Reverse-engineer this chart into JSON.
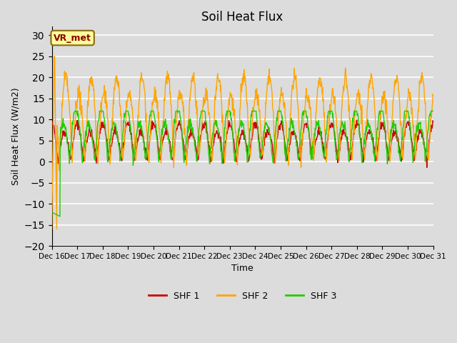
{
  "title": "Soil Heat Flux",
  "xlabel": "Time",
  "ylabel": "Soil Heat Flux (W/m2)",
  "ylim": [
    -20,
    32
  ],
  "yticks": [
    -20,
    -15,
    -10,
    -5,
    0,
    5,
    10,
    15,
    20,
    25,
    30
  ],
  "background_color": "#dcdcdc",
  "grid_color": "#ffffff",
  "shf1_color": "#cc0000",
  "shf2_color": "#ffa500",
  "shf3_color": "#22cc00",
  "legend_label": "VR_met",
  "legend_box_color": "#ffff99",
  "legend_text_color": "#8b0000",
  "legend_border_color": "#8b6914",
  "x_tick_labels": [
    "Dec 16",
    "Dec 17",
    "Dec 18",
    "Dec 19",
    "Dec 20",
    "Dec 21",
    "Dec 22",
    "Dec 23",
    "Dec 24",
    "Dec 25",
    "Dec 26",
    "Dec 27",
    "Dec 28",
    "Dec 29",
    "Dec 30",
    "Dec 31"
  ],
  "num_days": 15,
  "linewidth": 1.0
}
